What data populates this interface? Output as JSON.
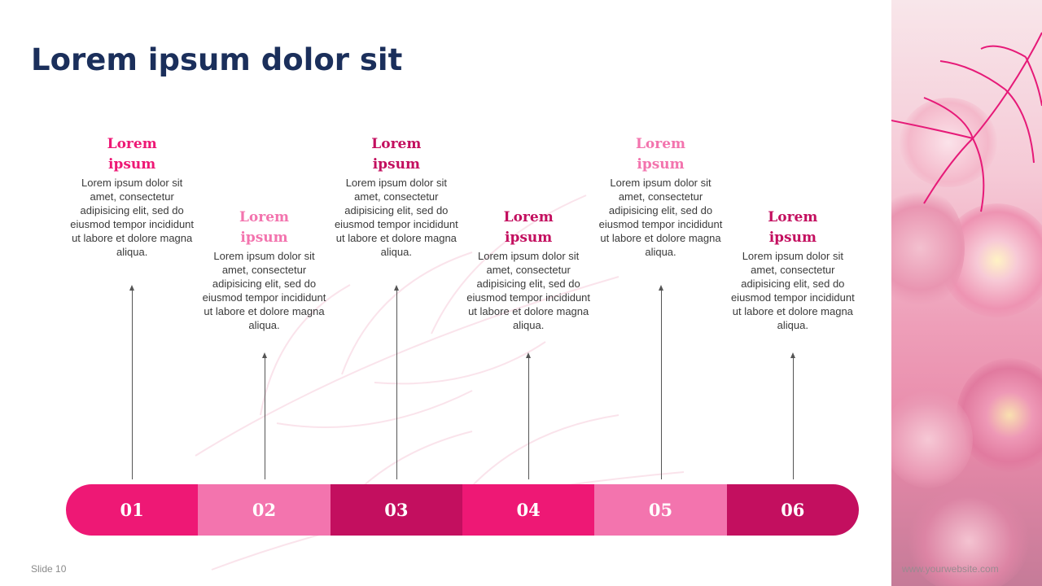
{
  "slide": {
    "title": "Lorem ipsum dolor sit",
    "footer": "Slide 10",
    "website": "www.yourwebsite.com"
  },
  "colors": {
    "title": "#1b2f5b",
    "pink_dark": "#c30f5f",
    "pink_bright": "#ee1875",
    "pink_light": "#f374ae"
  },
  "timeline": [
    {
      "number": "01",
      "heading": "Lorem ipsum",
      "text": "Lorem ipsum dolor sit amet, consectetur adipisicing elit, sed do eiusmod tempor incididunt ut labore et dolore magna aliqua.",
      "color": "#ee1875",
      "heading_color": "#ee1875"
    },
    {
      "number": "02",
      "heading": "Lorem ipsum",
      "text": "Lorem ipsum dolor sit amet, consectetur adipisicing elit, sed do eiusmod tempor incididunt ut labore et dolore magna aliqua.",
      "color": "#f374ae",
      "heading_color": "#f374ae"
    },
    {
      "number": "03",
      "heading": "Lorem ipsum",
      "text": "Lorem ipsum dolor sit amet, consectetur adipisicing elit, sed do eiusmod tempor incididunt ut labore et dolore magna aliqua.",
      "color": "#c30f5f",
      "heading_color": "#c30f5f"
    },
    {
      "number": "04",
      "heading": "Lorem ipsum",
      "text": "Lorem ipsum dolor sit amet, consectetur adipisicing elit, sed do eiusmod tempor incididunt ut labore et dolore magna aliqua.",
      "color": "#ee1875",
      "heading_color": "#c30f5f"
    },
    {
      "number": "05",
      "heading": "Lorem ipsum",
      "text": "Lorem ipsum dolor sit amet, consectetur adipisicing elit, sed do eiusmod tempor incididunt ut labore et dolore magna aliqua.",
      "color": "#f374ae",
      "heading_color": "#f374ae"
    },
    {
      "number": "06",
      "heading": "Lorem ipsum",
      "text": "Lorem ipsum dolor sit amet, consectetur adipisicing elit, sed do eiusmod tempor incididunt ut labore et dolore magna aliqua.",
      "color": "#c30f5f",
      "heading_color": "#c30f5f"
    }
  ]
}
